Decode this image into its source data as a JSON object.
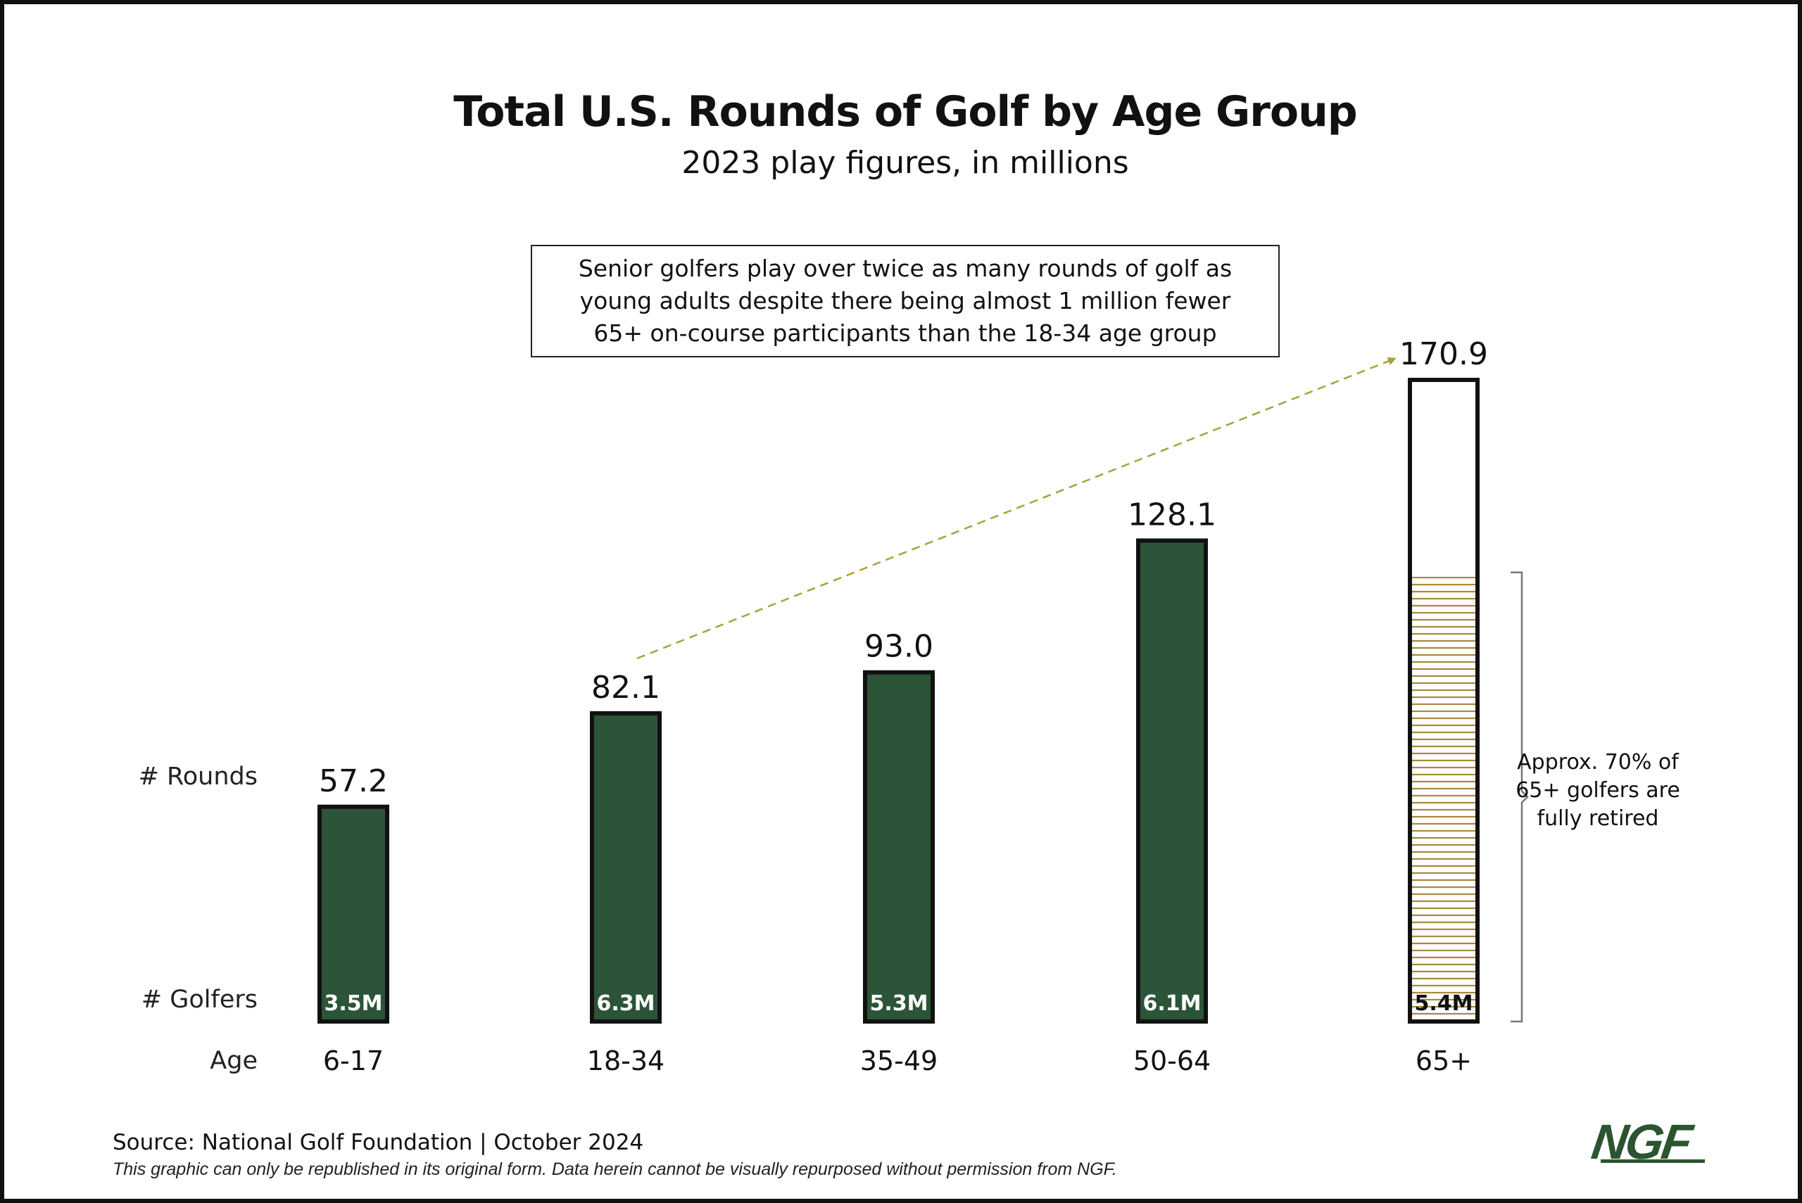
{
  "title": "Total U.S. Rounds of Golf by Age Group",
  "subtitle": "2023 play figures, in millions",
  "callout": "Senior golfers play over twice as many rounds of golf as\nyoung adults despite there being almost 1 million fewer\n65+ on-course participants than the 18-34 age group",
  "row_labels": {
    "rounds": "# Rounds",
    "golfers": "# Golfers",
    "age": "Age"
  },
  "retired_note": "Approx. 70% of\n65+ golfers are\nfully retired",
  "source": "Source: National Golf Foundation | October 2024",
  "disclaimer": "This graphic can only be republished in its original form. Data herein cannot be visually repurposed without permission from NGF.",
  "logo": "NGF",
  "colors": {
    "bar_fill": "#2b5438",
    "bar_border": "#111111",
    "hatch": "#a8893c",
    "arrow": "#a8a23a",
    "bracket": "#777777"
  },
  "chart_data": {
    "type": "bar",
    "categories": [
      "6-17",
      "18-34",
      "35-49",
      "50-64",
      "65+"
    ],
    "values": [
      57.2,
      82.1,
      93.0,
      128.1,
      170.9
    ],
    "value_labels": [
      "57.2",
      "82.1",
      "93.0",
      "128.1",
      "170.9"
    ],
    "golfers": [
      "3.5M",
      "6.3M",
      "5.3M",
      "6.1M",
      "5.4M"
    ],
    "retired_share": 0.7,
    "ylim": [
      0,
      170.9
    ],
    "grid": false,
    "annotations": [
      {
        "type": "arrow",
        "from": "18-34",
        "to": "65+"
      }
    ]
  }
}
